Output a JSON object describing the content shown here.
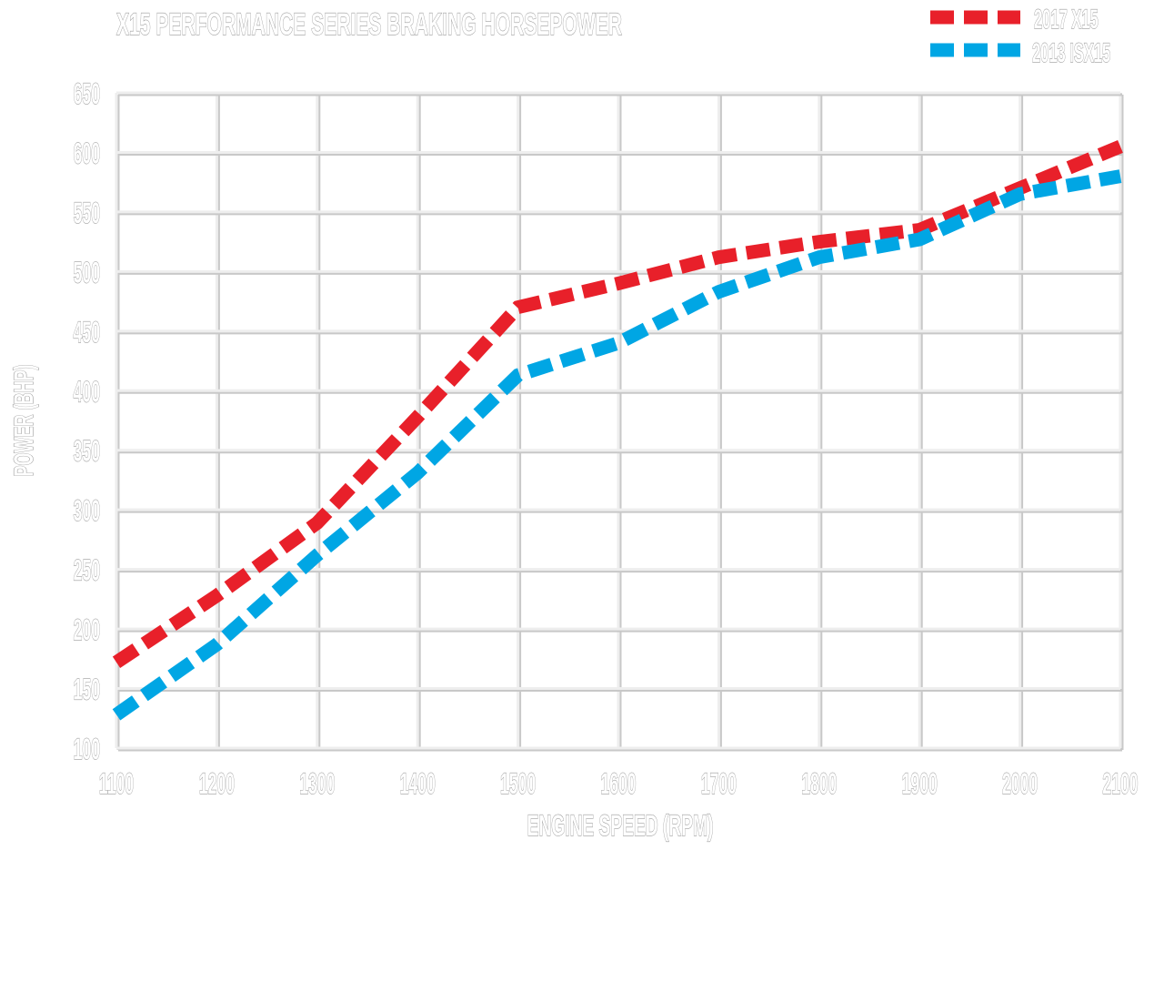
{
  "chart_data": {
    "type": "line",
    "title": "X15 PERFORMANCE SERIES BRAKING HORSEPOWER",
    "xlabel": "ENGINE SPEED (RPM)",
    "ylabel": "POWER (BHP)",
    "xlim": [
      1100,
      2100
    ],
    "ylim": [
      100,
      650
    ],
    "grid": true,
    "legend_position": "top-right",
    "x_ticks": [
      "1100",
      "1200",
      "1300",
      "1400",
      "1500",
      "1600",
      "1700",
      "1800",
      "1900",
      "2000",
      "2100"
    ],
    "y_ticks": [
      "100",
      "150",
      "200",
      "250",
      "300",
      "350",
      "400",
      "450",
      "500",
      "550",
      "600",
      "650"
    ],
    "x": [
      1100,
      1200,
      1300,
      1400,
      1500,
      1600,
      1700,
      1800,
      1900,
      2000,
      2100
    ],
    "series": [
      {
        "name": "2017 X15",
        "color": "#e8202a",
        "values": [
          172,
          228,
          289,
          378,
          470,
          490,
          512,
          525,
          535,
          570,
          605
        ]
      },
      {
        "name": "2013 ISX15",
        "color": "#00a6e4",
        "values": [
          128,
          187,
          262,
          331,
          413,
          440,
          483,
          512,
          527,
          565,
          580
        ]
      }
    ]
  }
}
